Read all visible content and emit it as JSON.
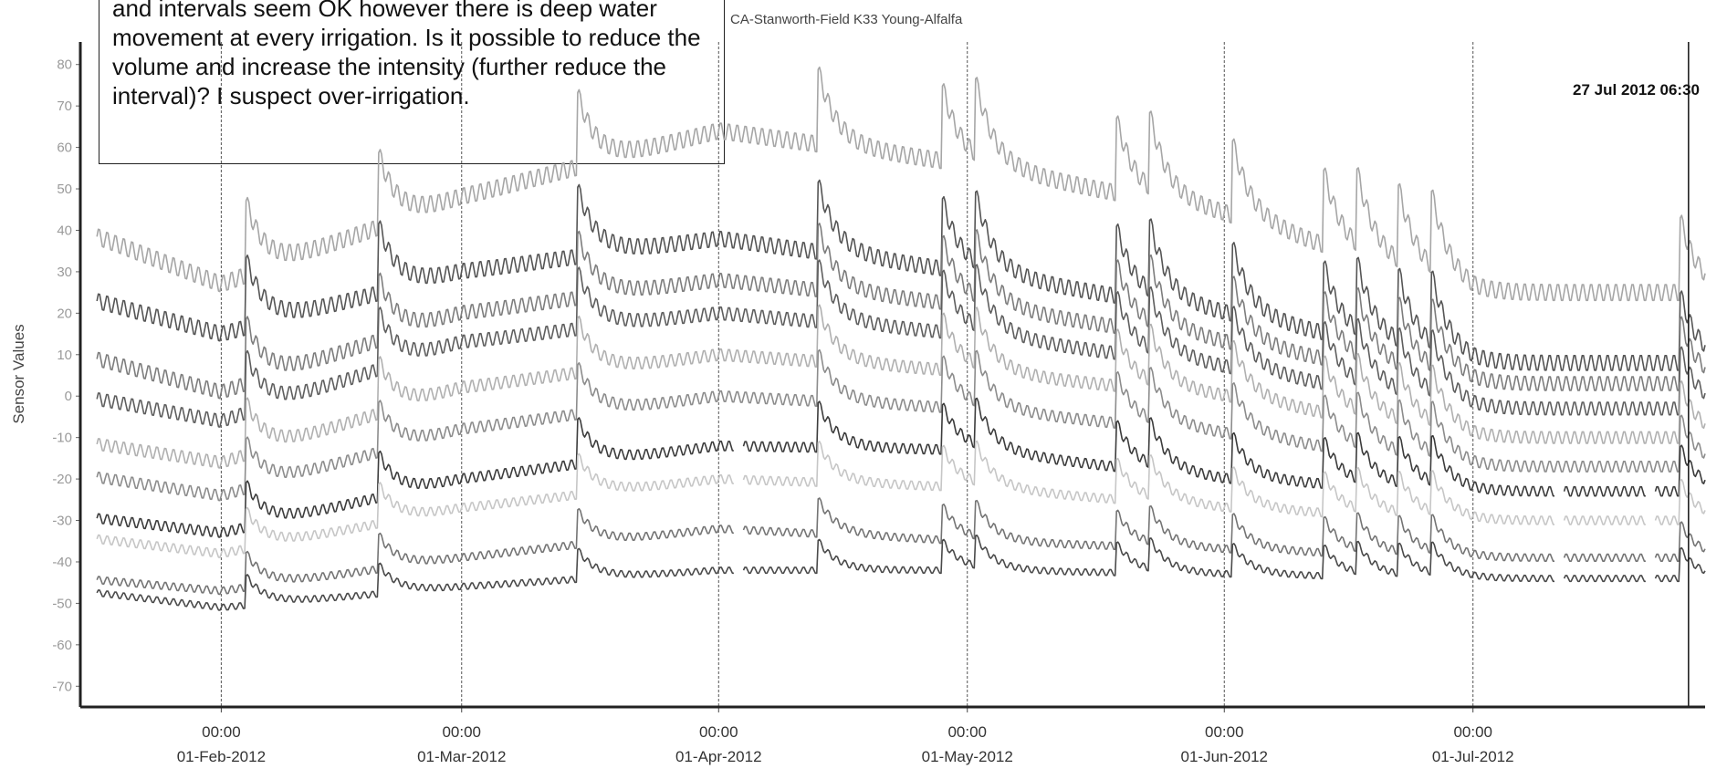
{
  "annotation": {
    "text": "and intervals seem OK however there is deep water movement at every irrigation.  Is it possible to reduce the volume and increase the intensity (further reduce the interval)?  I suspect over-irrigation."
  },
  "chart_data": {
    "type": "line",
    "title": "CA-Stanworth-Field K33 Young-Alfalfa",
    "ylabel": "Sensor Values",
    "xlabel": "",
    "ylim": [
      -75,
      85
    ],
    "yticks": [
      80,
      70,
      60,
      50,
      40,
      30,
      20,
      10,
      0,
      -10,
      -20,
      -30,
      -40,
      -50,
      -60,
      -70
    ],
    "x_axis": {
      "start": "2012-01-15",
      "end": "2012-07-29",
      "tick_time": "00:00",
      "ticks": [
        {
          "date": "2012-02-01",
          "label": "01-Feb-2012"
        },
        {
          "date": "2012-03-01",
          "label": "01-Mar-2012"
        },
        {
          "date": "2012-04-01",
          "label": "01-Apr-2012"
        },
        {
          "date": "2012-05-01",
          "label": "01-May-2012"
        },
        {
          "date": "2012-06-01",
          "label": "01-Jun-2012"
        },
        {
          "date": "2012-07-01",
          "label": "01-Jul-2012"
        }
      ]
    },
    "cursor_label": "27 Jul 2012 06:30",
    "cursor_date": "2012-07-27",
    "irrigation_events": [
      "2012-02-04",
      "2012-02-20",
      "2012-03-15",
      "2012-04-13",
      "2012-04-28",
      "2012-05-02",
      "2012-05-19",
      "2012-05-23",
      "2012-06-02",
      "2012-06-13",
      "2012-06-17",
      "2012-06-22",
      "2012-06-26",
      "2012-07-26"
    ],
    "dry_gaps": [
      [
        "2012-04-02",
        "2012-04-11"
      ],
      [
        "2012-05-08",
        "2012-05-16"
      ],
      [
        "2012-07-03",
        "2012-07-24"
      ]
    ],
    "series": [
      {
        "color": "#a6a6a6",
        "levels": [
          40,
          27,
          48,
          64,
          56,
          44,
          25
        ]
      },
      {
        "color": "#555555",
        "levels": [
          24,
          15,
          30,
          38,
          30,
          20,
          8
        ]
      },
      {
        "color": "#7d7d7d",
        "levels": [
          10,
          1,
          20,
          28,
          22,
          13,
          3
        ]
      },
      {
        "color": "#5e5e5e",
        "levels": [
          0,
          -6,
          13,
          20,
          15,
          7,
          -3
        ]
      },
      {
        "color": "#b0b0b0",
        "levels": [
          -11,
          -16,
          2,
          10,
          6,
          0,
          -10
        ]
      },
      {
        "color": "#8c8c8c",
        "levels": [
          -19,
          -24,
          -8,
          0,
          -3,
          -9,
          -17
        ]
      },
      {
        "color": "#3c3c3c",
        "levels": [
          -29,
          -33,
          -20,
          -12,
          -13,
          -20,
          -23
        ]
      },
      {
        "color": "#c6c6c6",
        "levels": [
          -34,
          -38,
          -27,
          -20,
          -22,
          -27,
          -30
        ]
      },
      {
        "color": "#747474",
        "levels": [
          -44,
          -47,
          -39,
          -32,
          -35,
          -37,
          -39
        ]
      },
      {
        "color": "#4a4a4a",
        "levels": [
          -47,
          -51,
          -46,
          -42,
          -42,
          -43,
          -44
        ]
      }
    ]
  }
}
